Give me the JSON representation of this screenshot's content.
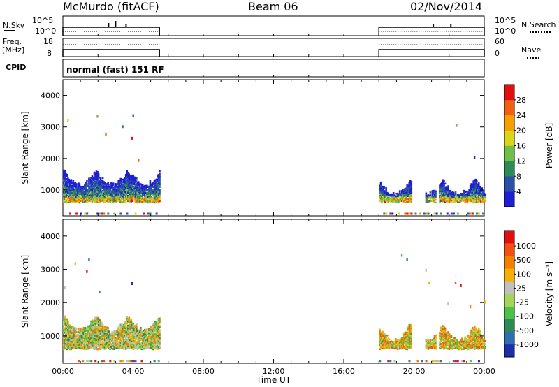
{
  "header": {
    "station": "McMurdo (fitACF)",
    "beam": "Beam 06",
    "date": "02/Nov/2014"
  },
  "strips": {
    "nsky_label": "N.Sky",
    "nsky_ticks": [
      "10^5",
      "10^0"
    ],
    "nsearch_label": "N.Search",
    "nsearch_ticks": [
      "10^5",
      "10^0"
    ],
    "freq_label_line1": "Freq.",
    "freq_label_line2": "[MHz]",
    "freq_ticks": [
      "18",
      "8"
    ],
    "nave_label": "Nave",
    "nave_ticks": [
      "60",
      "0"
    ],
    "cpid_label": "CPID",
    "cpid_value": "normal (fast) 151 RF"
  },
  "chart_data": [
    {
      "type": "heatmap",
      "title": "",
      "ylabel": "Slant Range [km]",
      "xlabel": "",
      "xlim": [
        "00:00",
        "24:00"
      ],
      "ylim": [
        180,
        4500
      ],
      "yticks": [
        "1000",
        "2000",
        "3000",
        "4000"
      ],
      "colorbar": {
        "label": "Power [dB]",
        "ticks": [
          "4",
          "8",
          "12",
          "16",
          "20",
          "24",
          "28"
        ],
        "colors": [
          "#1e1ed2",
          "#2c4fa8",
          "#2e8b57",
          "#6fc04a",
          "#d9d51a",
          "#f5a000",
          "#f06010",
          "#e01010"
        ]
      },
      "data_segments": [
        {
          "start": "00:00",
          "end": "05:30",
          "range_km": [
            600,
            1600
          ],
          "typical_db": 12,
          "peak_db": 24
        },
        {
          "start": "18:00",
          "end": "24:00",
          "range_km": [
            600,
            1300
          ],
          "typical_db": 10,
          "peak_db": 28
        }
      ]
    },
    {
      "type": "heatmap",
      "title": "",
      "ylabel": "Slant Range [km]",
      "xlabel": "Time UT",
      "xlim": [
        "00:00",
        "24:00"
      ],
      "ylim": [
        180,
        4500
      ],
      "yticks": [
        "1000",
        "2000",
        "3000",
        "4000"
      ],
      "xticks": [
        "00:00",
        "04:00",
        "08:00",
        "12:00",
        "16:00",
        "20:00",
        "00:00"
      ],
      "colorbar": {
        "label": "Velocity [m s⁻¹]",
        "ticks": [
          "1000",
          "500",
          "100",
          "25",
          "-25",
          "-100",
          "-500",
          "-1000"
        ],
        "colors": [
          "#1e2ea8",
          "#2e6fb0",
          "#2e8b57",
          "#4dc04a",
          "#a6d45a",
          "#c0c0c0",
          "#f5b000",
          "#f08000",
          "#f05010",
          "#e01010"
        ]
      },
      "data_segments": [
        {
          "start": "00:00",
          "end": "05:30",
          "range_km": [
            600,
            1600
          ],
          "typical_velocity": 0
        },
        {
          "start": "18:00",
          "end": "24:00",
          "range_km": [
            600,
            1300
          ],
          "typical_velocity": -100
        }
      ]
    }
  ]
}
